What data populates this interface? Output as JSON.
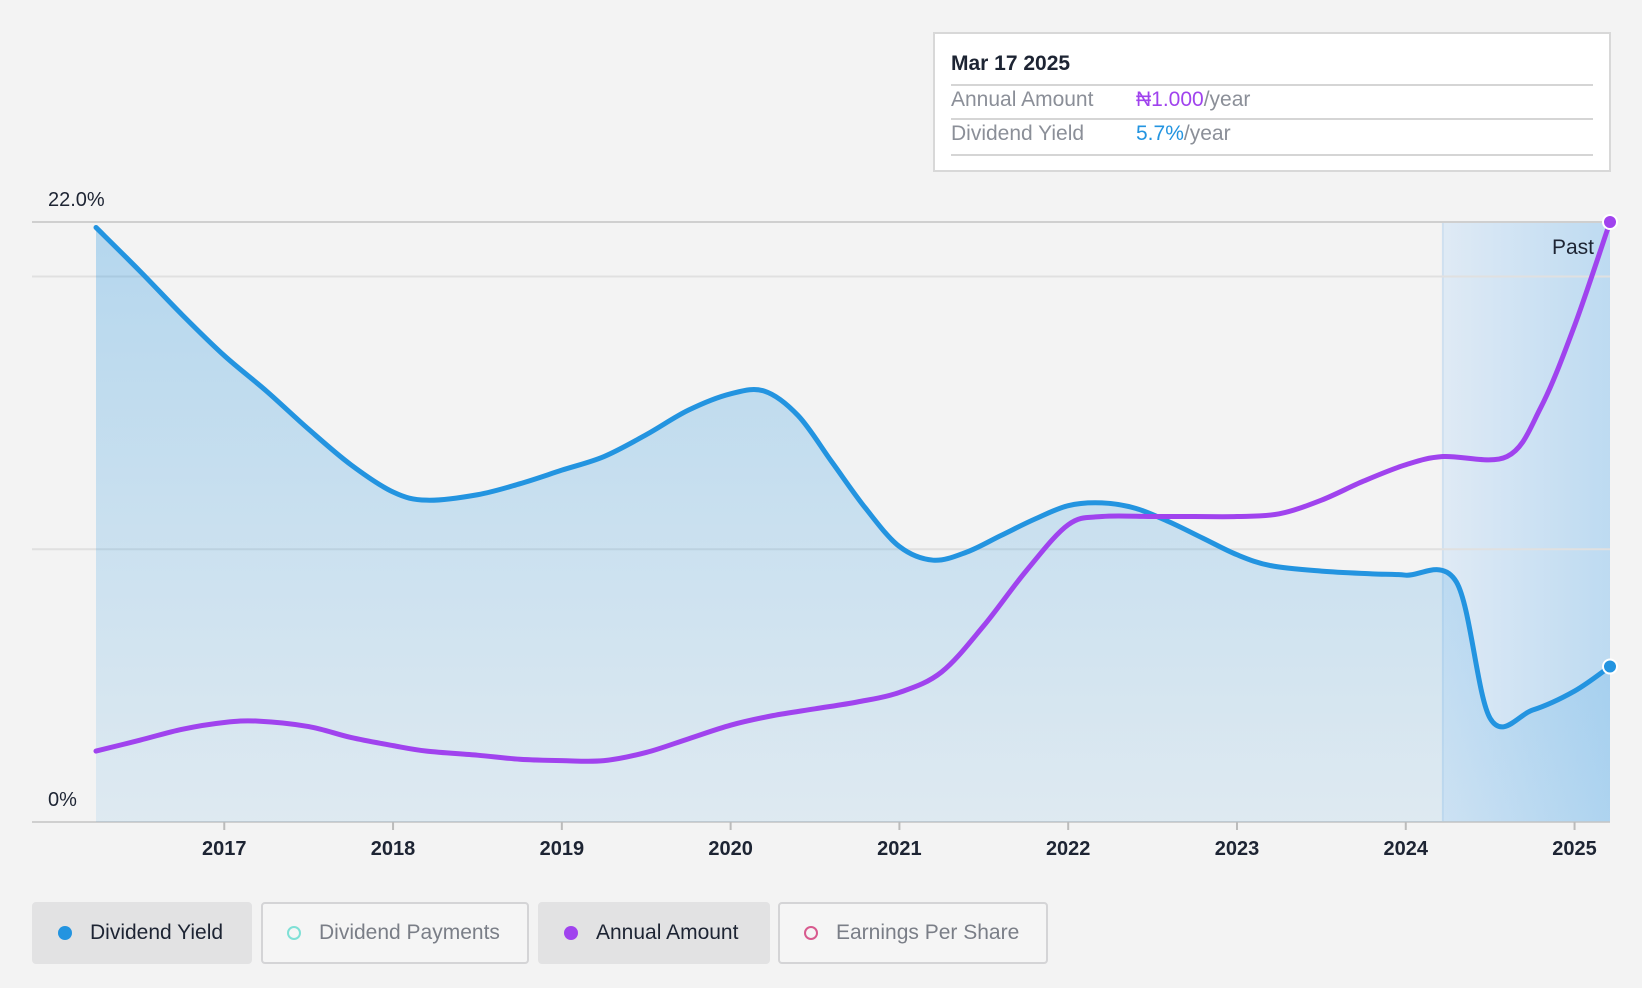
{
  "tooltip": {
    "date": "Mar 17 2025",
    "rows": [
      {
        "label": "Annual Amount",
        "value": "₦1.000",
        "unit": "/year",
        "color": "#a043ee"
      },
      {
        "label": "Dividend Yield",
        "value": "5.7%",
        "unit": "/year",
        "color": "#2394e0"
      }
    ]
  },
  "chart_data": {
    "type": "line",
    "y_axis": {
      "top_label": "22.0%",
      "bottom_label": "0%",
      "ylim": [
        0,
        22
      ]
    },
    "x_ticks": [
      "2017",
      "2018",
      "2019",
      "2020",
      "2021",
      "2022",
      "2023",
      "2024",
      "2025"
    ],
    "xlim": [
      2016.24,
      2025.21
    ],
    "region_label": "Past",
    "region_start": 2024.22,
    "grid": true,
    "series": [
      {
        "name": "Dividend Yield",
        "color": "#2394e0",
        "area": true,
        "points": [
          [
            2016.24,
            21.8
          ],
          [
            2016.5,
            20.2
          ],
          [
            2016.75,
            18.6
          ],
          [
            2017.0,
            17.1
          ],
          [
            2017.25,
            15.8
          ],
          [
            2017.5,
            14.4
          ],
          [
            2017.75,
            13.1
          ],
          [
            2018.0,
            12.1
          ],
          [
            2018.2,
            11.8
          ],
          [
            2018.5,
            12.0
          ],
          [
            2018.75,
            12.4
          ],
          [
            2019.0,
            12.9
          ],
          [
            2019.25,
            13.4
          ],
          [
            2019.5,
            14.2
          ],
          [
            2019.75,
            15.1
          ],
          [
            2020.0,
            15.7
          ],
          [
            2020.2,
            15.8
          ],
          [
            2020.4,
            14.9
          ],
          [
            2020.6,
            13.2
          ],
          [
            2020.8,
            11.5
          ],
          [
            2021.0,
            10.1
          ],
          [
            2021.2,
            9.6
          ],
          [
            2021.4,
            9.9
          ],
          [
            2021.6,
            10.5
          ],
          [
            2021.8,
            11.1
          ],
          [
            2022.0,
            11.6
          ],
          [
            2022.2,
            11.7
          ],
          [
            2022.4,
            11.5
          ],
          [
            2022.6,
            11.0
          ],
          [
            2022.8,
            10.4
          ],
          [
            2023.0,
            9.8
          ],
          [
            2023.2,
            9.4
          ],
          [
            2023.5,
            9.2
          ],
          [
            2023.8,
            9.1
          ],
          [
            2024.0,
            9.05
          ],
          [
            2024.3,
            8.8
          ],
          [
            2024.5,
            3.8
          ],
          [
            2024.75,
            4.1
          ],
          [
            2025.0,
            4.8
          ],
          [
            2025.21,
            5.7
          ]
        ]
      },
      {
        "name": "Annual Amount",
        "color": "#a043ee",
        "area": false,
        "points": [
          [
            2016.24,
            2.6
          ],
          [
            2016.5,
            3.0
          ],
          [
            2016.75,
            3.4
          ],
          [
            2017.0,
            3.65
          ],
          [
            2017.2,
            3.7
          ],
          [
            2017.5,
            3.5
          ],
          [
            2017.75,
            3.1
          ],
          [
            2018.0,
            2.8
          ],
          [
            2018.2,
            2.6
          ],
          [
            2018.5,
            2.45
          ],
          [
            2018.75,
            2.3
          ],
          [
            2019.0,
            2.25
          ],
          [
            2019.25,
            2.25
          ],
          [
            2019.5,
            2.55
          ],
          [
            2019.75,
            3.05
          ],
          [
            2020.0,
            3.55
          ],
          [
            2020.25,
            3.9
          ],
          [
            2020.5,
            4.15
          ],
          [
            2020.75,
            4.4
          ],
          [
            2021.0,
            4.75
          ],
          [
            2021.25,
            5.5
          ],
          [
            2021.5,
            7.2
          ],
          [
            2021.75,
            9.2
          ],
          [
            2022.0,
            10.9
          ],
          [
            2022.2,
            11.2
          ],
          [
            2022.5,
            11.2
          ],
          [
            2022.75,
            11.2
          ],
          [
            2023.0,
            11.2
          ],
          [
            2023.25,
            11.3
          ],
          [
            2023.5,
            11.8
          ],
          [
            2023.75,
            12.5
          ],
          [
            2024.0,
            13.1
          ],
          [
            2024.22,
            13.4
          ],
          [
            2024.6,
            13.4
          ],
          [
            2024.8,
            15.2
          ],
          [
            2025.0,
            18.2
          ],
          [
            2025.21,
            22.0
          ]
        ]
      }
    ],
    "legend_position": "bottom-left"
  },
  "legend": [
    {
      "label": "Dividend Yield",
      "active": true
    },
    {
      "label": "Dividend Payments",
      "active": false
    },
    {
      "label": "Annual Amount",
      "active": true
    },
    {
      "label": "Earnings Per Share",
      "active": false
    }
  ]
}
